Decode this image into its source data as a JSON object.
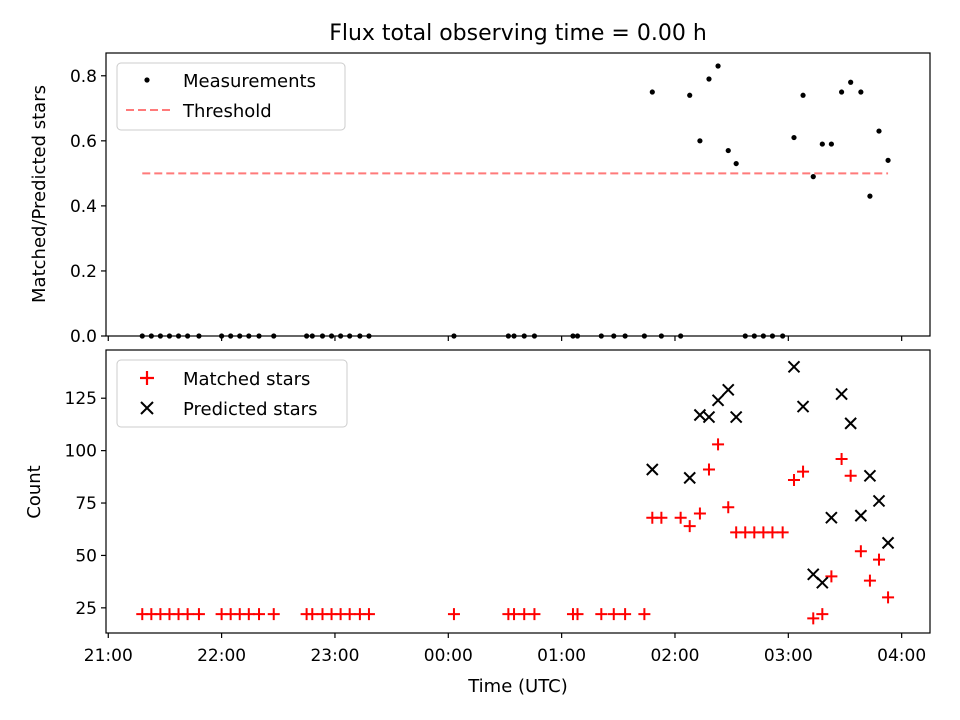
{
  "figure": {
    "title": "Flux total observing time = 0.00 h"
  },
  "chart_data": [
    {
      "type": "scatter",
      "xlabel": "",
      "ylabel": "Matched/Predicted stars",
      "ylim": [
        0,
        0.87
      ],
      "yticks": [
        "0.0",
        "0.2",
        "0.4",
        "0.6",
        "0.8"
      ],
      "xlim": [
        -0.02,
        7.25
      ],
      "grid": false,
      "legend": "top-left",
      "series": [
        {
          "name": "Measurements",
          "marker": "dot",
          "color": "#000000",
          "points": [
            [
              0.3,
              0
            ],
            [
              0.38,
              0
            ],
            [
              0.46,
              0
            ],
            [
              0.54,
              0
            ],
            [
              0.62,
              0
            ],
            [
              0.7,
              0
            ],
            [
              0.8,
              0
            ],
            [
              1.0,
              0
            ],
            [
              1.08,
              0
            ],
            [
              1.16,
              0
            ],
            [
              1.24,
              0
            ],
            [
              1.33,
              0
            ],
            [
              1.46,
              0
            ],
            [
              1.75,
              0
            ],
            [
              1.8,
              0
            ],
            [
              1.89,
              0
            ],
            [
              1.97,
              0
            ],
            [
              2.05,
              0
            ],
            [
              2.13,
              0
            ],
            [
              2.22,
              0
            ],
            [
              2.3,
              0
            ],
            [
              3.05,
              0
            ],
            [
              3.53,
              0
            ],
            [
              3.58,
              0
            ],
            [
              3.67,
              0
            ],
            [
              3.76,
              0
            ],
            [
              4.1,
              0
            ],
            [
              4.14,
              0
            ],
            [
              4.35,
              0
            ],
            [
              4.46,
              0
            ],
            [
              4.56,
              0
            ],
            [
              4.73,
              0
            ],
            [
              4.88,
              0
            ],
            [
              5.05,
              0
            ],
            [
              5.62,
              0
            ],
            [
              5.7,
              0
            ],
            [
              5.78,
              0
            ],
            [
              5.86,
              0
            ],
            [
              5.95,
              0
            ],
            [
              4.8,
              0.75
            ],
            [
              5.13,
              0.74
            ],
            [
              5.22,
              0.6
            ],
            [
              5.3,
              0.79
            ],
            [
              5.38,
              0.83
            ],
            [
              5.47,
              0.57
            ],
            [
              5.54,
              0.53
            ],
            [
              6.05,
              0.61
            ],
            [
              6.13,
              0.74
            ],
            [
              6.22,
              0.49
            ],
            [
              6.3,
              0.59
            ],
            [
              6.38,
              0.59
            ],
            [
              6.47,
              0.75
            ],
            [
              6.55,
              0.78
            ],
            [
              6.64,
              0.75
            ],
            [
              6.72,
              0.43
            ],
            [
              6.8,
              0.63
            ],
            [
              6.88,
              0.54
            ]
          ]
        },
        {
          "name": "Threshold",
          "marker": "dashed-line",
          "color": "#ff7a7a",
          "x": [
            0.3,
            6.88
          ],
          "y": [
            0.5,
            0.5
          ]
        }
      ]
    },
    {
      "type": "scatter",
      "xlabel": "Time (UTC)",
      "ylabel": "Count",
      "ylim": [
        13,
        148
      ],
      "yticks": [
        "25",
        "50",
        "75",
        "100",
        "125"
      ],
      "xlim": [
        -0.02,
        7.25
      ],
      "xticks": [
        "21:00",
        "22:00",
        "23:00",
        "00:00",
        "01:00",
        "02:00",
        "03:00",
        "04:00"
      ],
      "grid": false,
      "legend": "top-left",
      "series": [
        {
          "name": "Matched stars",
          "marker": "plus",
          "color": "#ff0000",
          "points": [
            [
              0.3,
              22
            ],
            [
              0.38,
              22
            ],
            [
              0.46,
              22
            ],
            [
              0.54,
              22
            ],
            [
              0.62,
              22
            ],
            [
              0.7,
              22
            ],
            [
              0.8,
              22
            ],
            [
              1.0,
              22
            ],
            [
              1.08,
              22
            ],
            [
              1.16,
              22
            ],
            [
              1.24,
              22
            ],
            [
              1.33,
              22
            ],
            [
              1.46,
              22
            ],
            [
              1.75,
              22
            ],
            [
              1.8,
              22
            ],
            [
              1.89,
              22
            ],
            [
              1.97,
              22
            ],
            [
              2.05,
              22
            ],
            [
              2.13,
              22
            ],
            [
              2.22,
              22
            ],
            [
              2.3,
              22
            ],
            [
              3.05,
              22
            ],
            [
              3.53,
              22
            ],
            [
              3.58,
              22
            ],
            [
              3.67,
              22
            ],
            [
              3.76,
              22
            ],
            [
              4.1,
              22
            ],
            [
              4.14,
              22
            ],
            [
              4.35,
              22
            ],
            [
              4.46,
              22
            ],
            [
              4.56,
              22
            ],
            [
              4.73,
              22
            ],
            [
              4.8,
              68
            ],
            [
              4.88,
              68
            ],
            [
              5.05,
              68
            ],
            [
              5.13,
              64
            ],
            [
              5.22,
              70
            ],
            [
              5.3,
              91
            ],
            [
              5.38,
              103
            ],
            [
              5.47,
              73
            ],
            [
              5.54,
              61
            ],
            [
              5.62,
              61
            ],
            [
              5.7,
              61
            ],
            [
              5.78,
              61
            ],
            [
              5.86,
              61
            ],
            [
              5.95,
              61
            ],
            [
              6.05,
              86
            ],
            [
              6.13,
              90
            ],
            [
              6.22,
              20
            ],
            [
              6.3,
              22
            ],
            [
              6.38,
              40
            ],
            [
              6.47,
              96
            ],
            [
              6.55,
              88
            ],
            [
              6.64,
              52
            ],
            [
              6.72,
              38
            ],
            [
              6.8,
              48
            ],
            [
              6.88,
              30
            ]
          ]
        },
        {
          "name": "Predicted stars",
          "marker": "x",
          "color": "#000000",
          "points": [
            [
              4.8,
              91
            ],
            [
              5.13,
              87
            ],
            [
              5.22,
              117
            ],
            [
              5.3,
              116
            ],
            [
              5.38,
              124
            ],
            [
              5.47,
              129
            ],
            [
              5.54,
              116
            ],
            [
              6.05,
              140
            ],
            [
              6.13,
              121
            ],
            [
              6.22,
              41
            ],
            [
              6.3,
              37
            ],
            [
              6.38,
              68
            ],
            [
              6.47,
              127
            ],
            [
              6.55,
              113
            ],
            [
              6.64,
              69
            ],
            [
              6.72,
              88
            ],
            [
              6.8,
              76
            ],
            [
              6.88,
              56
            ]
          ]
        }
      ]
    }
  ]
}
